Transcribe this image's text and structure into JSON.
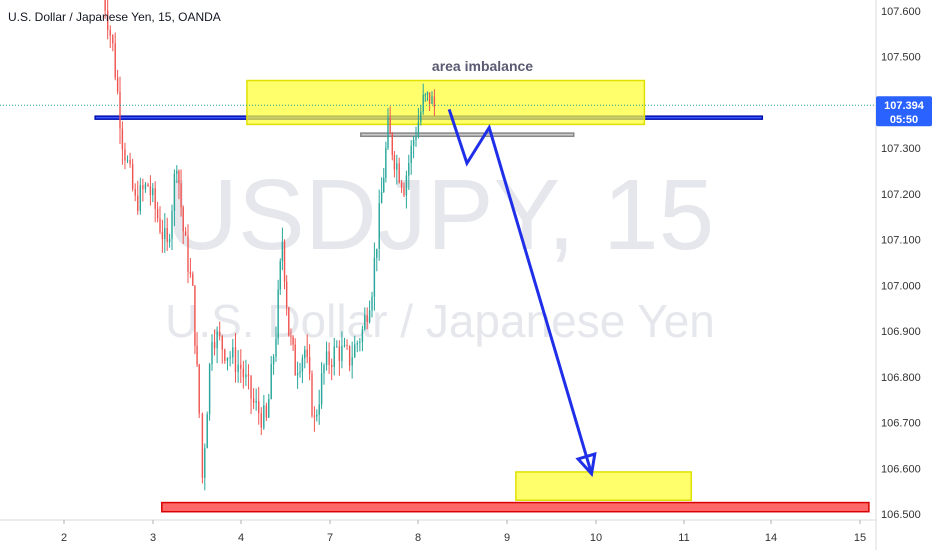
{
  "header": {
    "symbol_title": "U.S. Dollar / Japanese Yen, 15, OANDA"
  },
  "watermark": {
    "ticker": "USDJPY, 15",
    "description": "U.S. Dollar / Japanese Yen"
  },
  "annotation": {
    "text": "area imbalance"
  },
  "price_axis": {
    "last_price": "107.394",
    "countdown": "05:50",
    "last_price_color": "#2962ff"
  },
  "chart_data": {
    "type": "candlestick",
    "title": "U.S. Dollar / Japanese Yen, 15, OANDA",
    "x_ticks": [
      "2",
      "3",
      "4",
      "7",
      "8",
      "9",
      "10",
      "11",
      "14",
      "15"
    ],
    "y_ticks": [
      "107.600",
      "107.500",
      "107.400",
      "107.300",
      "107.200",
      "107.100",
      "107.000",
      "106.900",
      "106.800",
      "106.700",
      "106.600",
      "106.500"
    ],
    "ylim": [
      106.49,
      107.63
    ],
    "last_price": 107.394,
    "colors": {
      "up": "#26a69a",
      "down": "#ef5350"
    },
    "price_path": [
      [
        0,
        107.68
      ],
      [
        8,
        107.52
      ],
      [
        14,
        107.32
      ],
      [
        22,
        107.18
      ],
      [
        30,
        107.22
      ],
      [
        36,
        107.15
      ],
      [
        42,
        107.08
      ],
      [
        48,
        107.28
      ],
      [
        52,
        107.12
      ],
      [
        58,
        106.98
      ],
      [
        62,
        106.72
      ],
      [
        64,
        106.58
      ],
      [
        70,
        106.9
      ],
      [
        78,
        106.86
      ],
      [
        88,
        106.82
      ],
      [
        96,
        106.74
      ],
      [
        104,
        106.7
      ],
      [
        110,
        106.9
      ],
      [
        114,
        107.1
      ],
      [
        118,
        106.9
      ],
      [
        122,
        106.82
      ],
      [
        128,
        106.86
      ],
      [
        134,
        106.7
      ],
      [
        140,
        106.82
      ],
      [
        148,
        106.86
      ],
      [
        156,
        106.84
      ],
      [
        164,
        106.9
      ],
      [
        170,
        107.0
      ],
      [
        176,
        107.2
      ],
      [
        180,
        107.34
      ],
      [
        184,
        107.28
      ],
      [
        190,
        107.22
      ],
      [
        196,
        107.32
      ],
      [
        202,
        107.4
      ],
      [
        206,
        107.41
      ],
      [
        209,
        107.39
      ]
    ],
    "levels": [
      {
        "name": "blue-zone",
        "from": 107.37,
        "to": 107.365,
        "x_from": 2.35,
        "x_to": 13.7,
        "color": "#1f3cff"
      },
      {
        "name": "grey-zone",
        "from": 107.333,
        "to": 107.326,
        "x_from": 7.35,
        "x_to": 9.75,
        "color": "#9e9e9e"
      },
      {
        "name": "red-zone",
        "from": 106.525,
        "to": 106.505,
        "x_from": 3.1,
        "x_to": 15.1,
        "color": "#ff4d4d"
      },
      {
        "name": "yellow-imbalance",
        "from": 107.448,
        "to": 107.352,
        "x_from": 4.2,
        "x_to": 10.55,
        "color": "#ffff33"
      },
      {
        "name": "yellow-target",
        "from": 106.592,
        "to": 106.53,
        "x_from": 9.1,
        "x_to": 11.25,
        "color": "#ffff33"
      }
    ],
    "projection": [
      [
        8.35,
        107.385
      ],
      [
        8.55,
        107.267
      ],
      [
        8.8,
        107.345
      ],
      [
        9.95,
        106.588
      ]
    ]
  }
}
